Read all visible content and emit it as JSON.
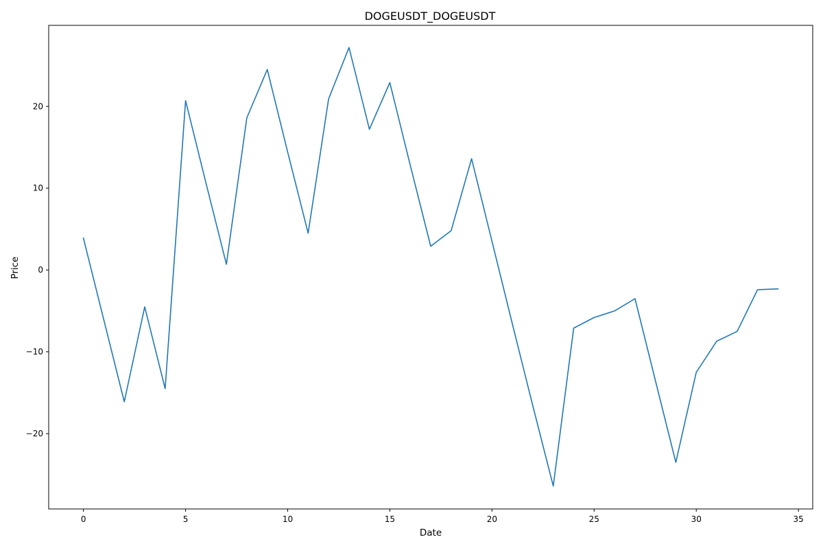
{
  "chart_data": {
    "type": "line",
    "title": "DOGEUSDT_DOGEUSDT",
    "xlabel": "Date",
    "ylabel": "Price",
    "xlim": [
      -1.7,
      35.7
    ],
    "ylim": [
      -29.2,
      29.9
    ],
    "grid": false,
    "x_ticks": [
      0,
      5,
      10,
      15,
      20,
      25,
      30,
      35
    ],
    "y_ticks": [
      -20,
      -10,
      0,
      10,
      20
    ],
    "series": [
      {
        "color": "#1f77b4",
        "x": [
          0,
          1,
          2,
          3,
          4,
          5,
          6,
          7,
          8,
          9,
          10,
          11,
          12,
          13,
          14,
          15,
          16,
          17,
          18,
          19,
          20,
          21,
          22,
          23,
          24,
          25,
          26,
          27,
          28,
          29,
          30,
          31,
          32,
          33,
          34
        ],
        "y": [
          3.9,
          -6.1,
          -16.1,
          -4.5,
          -14.5,
          20.7,
          10.6,
          0.7,
          18.6,
          24.5,
          14.4,
          4.5,
          20.9,
          27.2,
          17.2,
          22.9,
          12.8,
          2.9,
          4.8,
          13.6,
          3.5,
          -6.6,
          -16.6,
          -26.4,
          -7.1,
          -5.8,
          -5.0,
          -3.5,
          -13.5,
          -23.5,
          -12.5,
          -8.7,
          -7.5,
          -2.4,
          -2.3
        ]
      }
    ]
  }
}
